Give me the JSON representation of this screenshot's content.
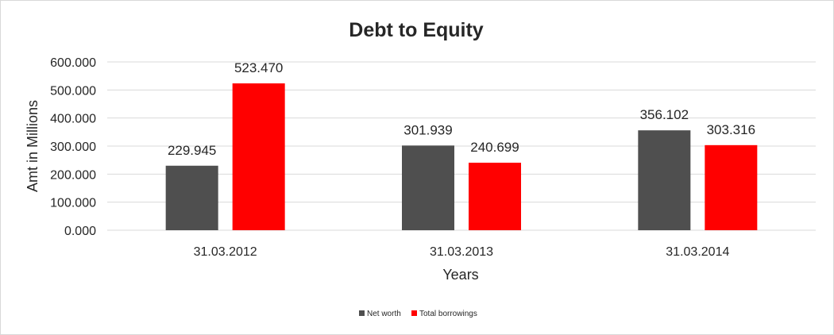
{
  "colors": {
    "net_worth": "#4f4f4f",
    "total_borrowings": "#ff0000",
    "gridline": "#d9d9d9",
    "text": "#262626"
  },
  "chart_data": {
    "type": "bar",
    "title": "Debt to Equity",
    "xlabel": "Years",
    "ylabel": "Amt in Millions",
    "categories": [
      "31.03.2012",
      "31.03.2013",
      "31.03.2014"
    ],
    "series": [
      {
        "name": "Net worth",
        "values": [
          229.945,
          301.939,
          356.102
        ],
        "labels": [
          "229.945",
          "301.939",
          "356.102"
        ]
      },
      {
        "name": "Total borrowings",
        "values": [
          523.47,
          240.699,
          303.316
        ],
        "labels": [
          "523.470",
          "240.699",
          "303.316"
        ]
      }
    ],
    "ylim": [
      0,
      600
    ],
    "yticks": [
      0,
      100,
      200,
      300,
      400,
      500,
      600
    ],
    "ytick_labels": [
      "0.000",
      "100.000",
      "200.000",
      "300.000",
      "400.000",
      "500.000",
      "600.000"
    ],
    "grid": true,
    "legend_position": "bottom"
  }
}
